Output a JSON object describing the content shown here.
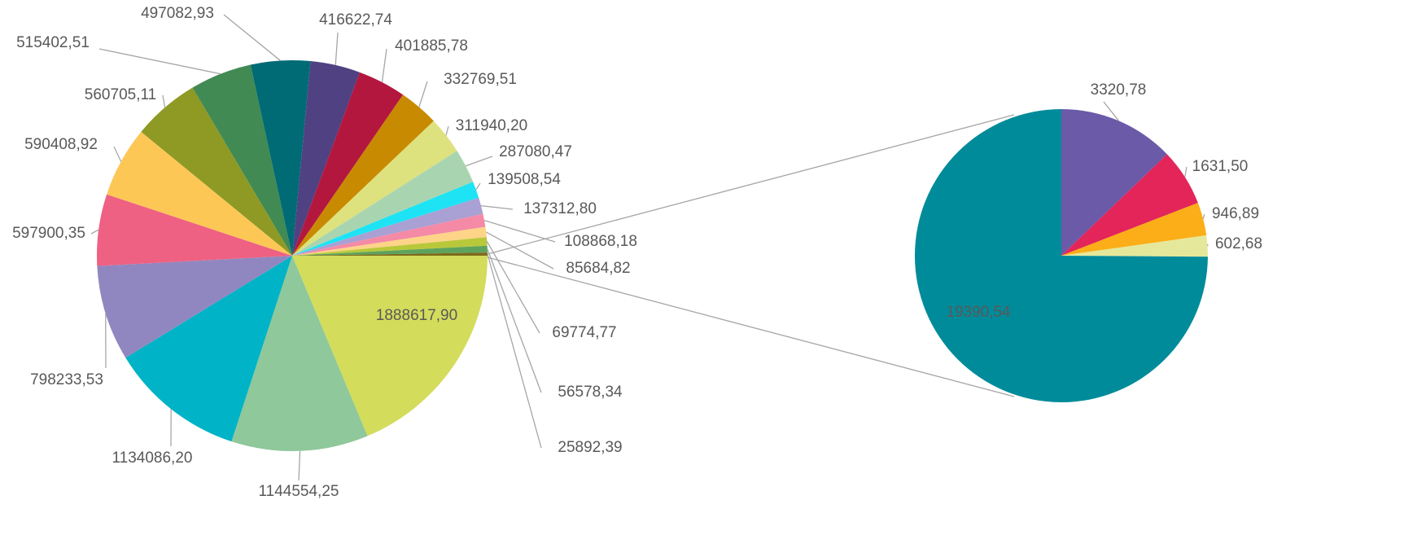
{
  "chart_data": {
    "type": "pie-of-pie",
    "values": [
      1888617.9,
      1144554.25,
      1134086.2,
      798233.53,
      597900.35,
      590408.92,
      560705.11,
      515402.51,
      497082.93,
      416622.74,
      401885.78,
      332769.51,
      311940.2,
      287080.47,
      139508.54,
      137312.8,
      108868.18,
      85684.82,
      69774.77,
      56578.34,
      25892.39
    ],
    "value_labels": [
      "1888617,90",
      "1144554,25",
      "1134086,20",
      "798233,53",
      "597900,35",
      "590408,92",
      "560705,11",
      "515402,51",
      "497082,93",
      "416622,74",
      "401885,78",
      "332769,51",
      "311940,20",
      "287080,47",
      "139508,54",
      "137312,80",
      "108868,18",
      "85684,82",
      "69774,77",
      "56578,34",
      "25892,39"
    ],
    "colors": [
      "#d4dc5c",
      "#8fc89a",
      "#00b3c6",
      "#9187c0",
      "#ee6183",
      "#fdc756",
      "#8f9a25",
      "#418a53",
      "#006b75",
      "#4f4182",
      "#b3173e",
      "#c88a00",
      "#dde27e",
      "#a8d5b0",
      "#1de3f5",
      "#a9a0d3",
      "#f48aa6",
      "#fdd488",
      "#b9c83a",
      "#5da35e",
      "#7d6b1a"
    ],
    "secondary": {
      "values": [
        3320.78,
        1631.5,
        946.89,
        602.68,
        19390.54
      ],
      "value_labels": [
        "3320,78",
        "1631,50",
        "946,89",
        "602,68",
        "19390,54"
      ],
      "colors": [
        "#6a5aa8",
        "#e3255a",
        "#fbae17",
        "#e5e89a",
        "#008b9a"
      ]
    }
  }
}
